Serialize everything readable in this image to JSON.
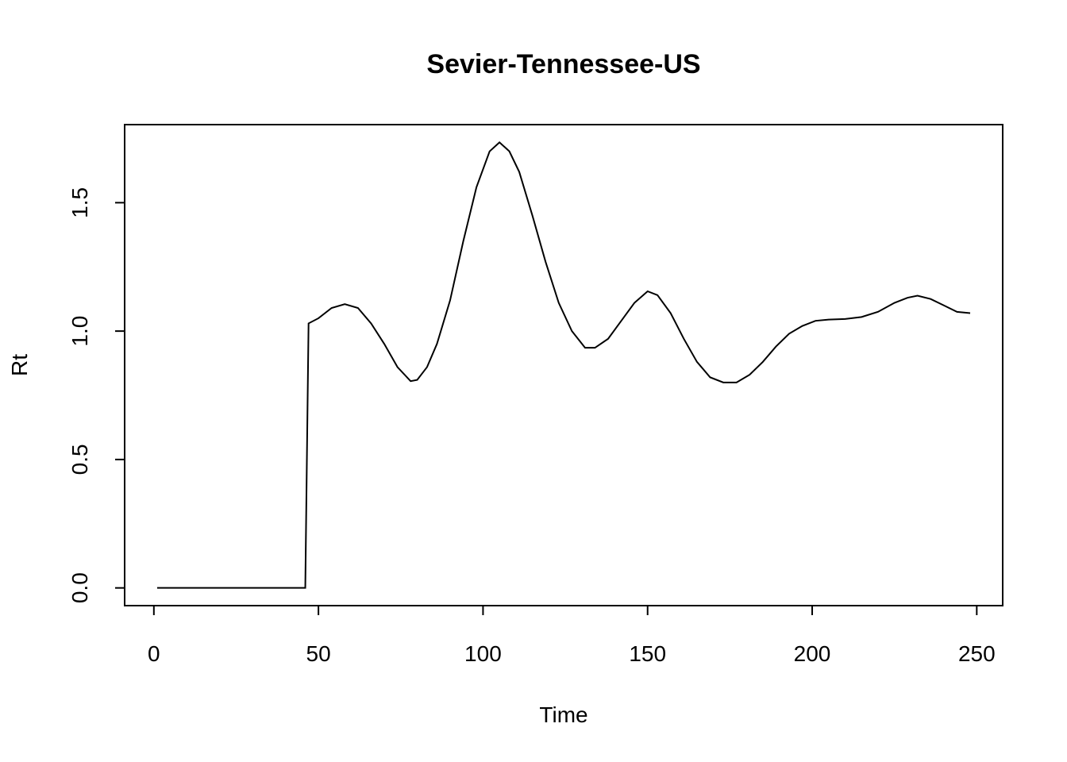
{
  "chart_data": {
    "type": "line",
    "title": "Sevier-Tennessee-US",
    "x_label": "Time",
    "y_label": "Rt",
    "x": [
      1,
      46,
      47,
      50,
      54,
      58,
      62,
      66,
      70,
      74,
      78,
      80,
      83,
      86,
      90,
      94,
      98,
      102,
      105,
      108,
      111,
      115,
      119,
      123,
      127,
      131,
      134,
      138,
      142,
      146,
      150,
      153,
      157,
      161,
      165,
      169,
      173,
      177,
      181,
      185,
      189,
      193,
      197,
      201,
      205,
      210,
      215,
      220,
      225,
      229,
      232,
      236,
      240,
      244,
      248
    ],
    "series": [
      {
        "color": "#000000",
        "values": [
          0,
          0,
          1.03,
          1.05,
          1.09,
          1.105,
          1.09,
          1.03,
          0.95,
          0.86,
          0.805,
          0.81,
          0.86,
          0.95,
          1.12,
          1.35,
          1.56,
          1.7,
          1.735,
          1.7,
          1.62,
          1.45,
          1.27,
          1.11,
          1.0,
          0.935,
          0.935,
          0.97,
          1.04,
          1.11,
          1.155,
          1.14,
          1.07,
          0.97,
          0.88,
          0.82,
          0.8,
          0.8,
          0.83,
          0.88,
          0.94,
          0.99,
          1.02,
          1.04,
          1.045,
          1.047,
          1.055,
          1.075,
          1.11,
          1.13,
          1.138,
          1.125,
          1.1,
          1.075,
          1.07
        ]
      }
    ],
    "xlim": [
      -8.88,
      257.88
    ],
    "ylim": [
      -0.069,
      1.804
    ],
    "xticks": [
      0,
      50,
      100,
      150,
      200,
      250
    ],
    "yticks": [
      {
        "value": 0,
        "label": "0.0"
      },
      0.5,
      {
        "value": 1,
        "label": "1.0"
      },
      1.5
    ]
  }
}
